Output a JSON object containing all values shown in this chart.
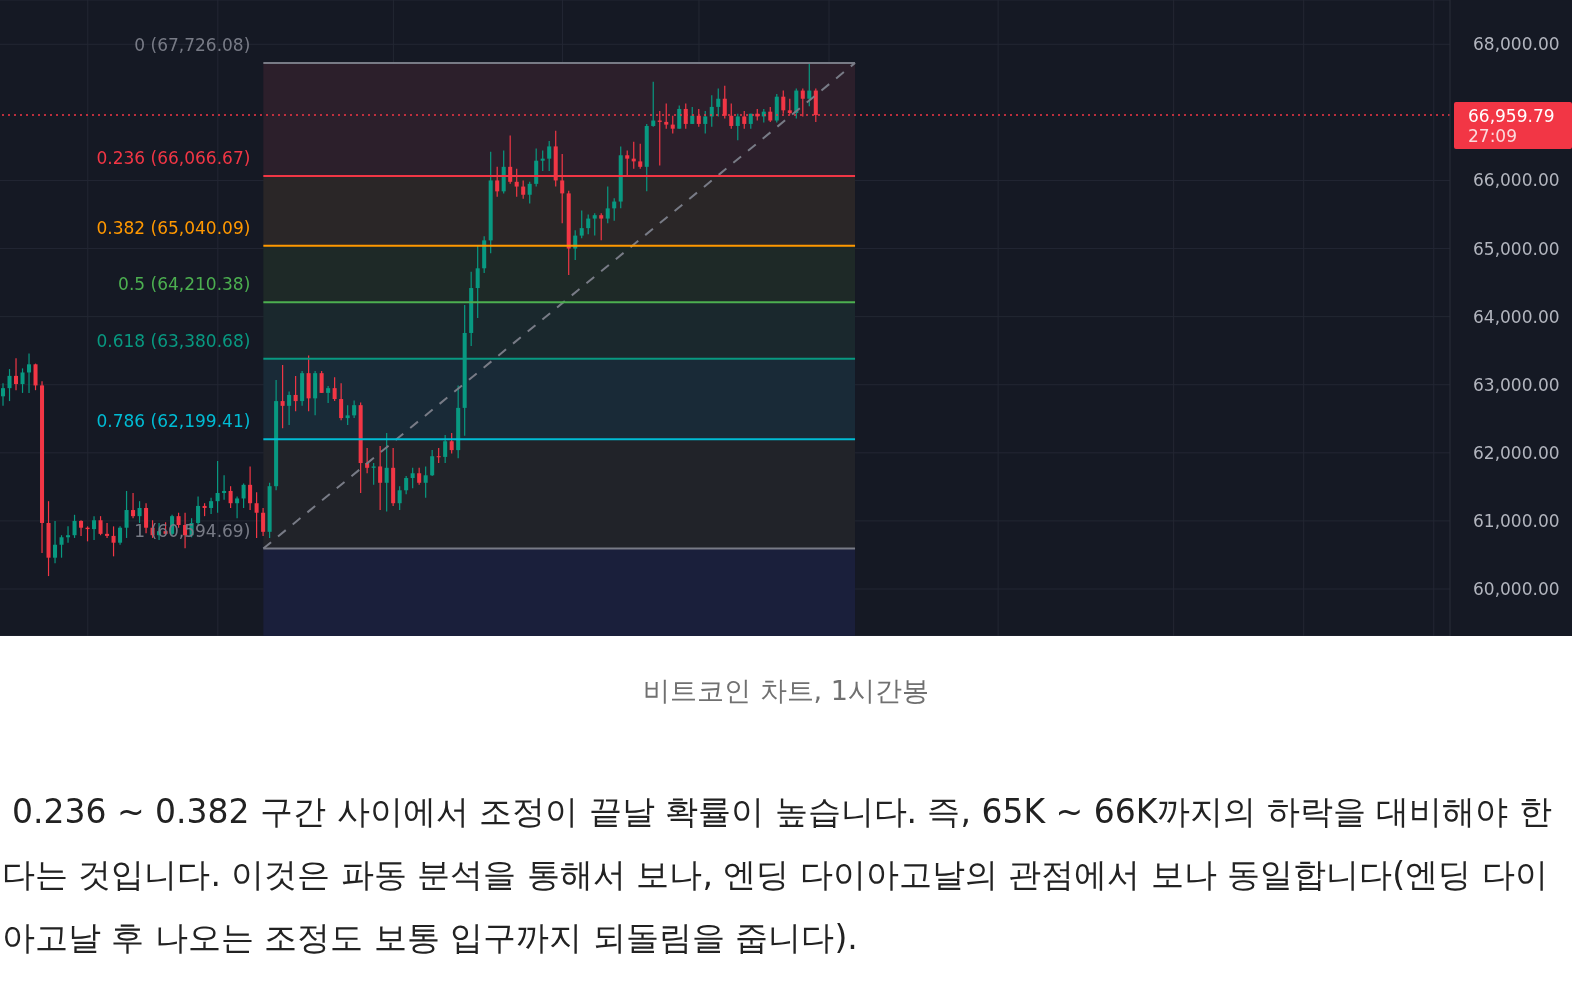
{
  "chart_data": {
    "type": "candlestick",
    "categories": [
      null,
      null,
      null,
      null,
      null,
      null,
      null,
      null,
      null,
      null,
      null,
      null,
      null,
      null,
      null,
      null,
      null,
      null,
      null,
      null,
      null,
      null,
      null,
      null,
      null,
      null,
      null,
      null,
      null,
      null,
      null,
      null,
      null,
      null,
      null,
      null,
      null,
      null,
      null,
      null,
      null,
      null,
      null,
      null,
      null,
      null,
      null,
      null,
      null,
      null,
      null,
      null,
      null,
      null,
      null,
      null,
      null,
      null,
      null,
      null,
      null,
      null,
      null,
      null,
      null,
      null,
      null,
      null,
      null,
      null,
      null,
      null,
      null,
      null,
      null,
      null,
      null,
      null,
      null,
      null,
      null,
      null,
      null,
      null,
      null,
      null,
      null,
      null,
      null,
      null,
      null,
      null,
      null,
      null,
      null,
      null,
      null,
      null,
      null,
      null,
      null,
      null,
      null,
      null,
      null,
      null,
      null,
      null,
      null,
      null,
      null,
      null,
      null,
      null,
      null,
      null,
      null,
      null,
      null,
      null,
      null,
      null,
      null,
      null,
      null,
      null,
      null,
      null,
      null,
      null,
      null,
      null,
      null,
      null,
      null,
      null,
      null,
      null,
      null,
      null,
      null,
      null,
      null,
      null,
      null,
      null,
      null,
      null,
      null,
      null,
      null,
      null,
      null,
      null,
      null,
      null,
      null,
      null,
      null,
      null,
      null,
      null,
      null,
      null,
      null,
      null,
      null,
      null,
      null,
      null,
      null,
      null,
      null,
      null,
      null,
      null,
      null,
      null,
      null,
      null,
      null,
      null,
      null,
      null,
      null,
      null,
      null,
      null,
      null,
      null,
      null,
      null,
      null,
      null,
      null,
      null,
      null,
      null,
      null,
      null,
      null,
      null,
      null,
      null,
      null,
      null,
      null,
      null,
      null,
      null,
      null,
      null,
      null,
      null,
      null,
      null,
      null,
      null,
      null,
      null,
      null,
      null,
      null
    ],
    "ohlc": [
      [
        62830,
        63020,
        62690,
        62950
      ],
      [
        62950,
        63230,
        62760,
        63130
      ],
      [
        63130,
        63390,
        62920,
        63010
      ],
      [
        63010,
        63240,
        62880,
        63180
      ],
      [
        63180,
        63460,
        62880,
        63300
      ],
      [
        63300,
        63310,
        62920,
        62990
      ],
      [
        62990,
        63050,
        60530,
        60970
      ],
      [
        60970,
        61290,
        60190,
        60460
      ],
      [
        60460,
        61000,
        60380,
        60650
      ],
      [
        60650,
        60790,
        60460,
        60760
      ],
      [
        60760,
        60920,
        60680,
        60790
      ],
      [
        60790,
        61090,
        60750,
        61000
      ],
      [
        61000,
        61010,
        60780,
        60900
      ],
      [
        60900,
        60920,
        60700,
        60880
      ],
      [
        60880,
        61070,
        60720,
        61010
      ],
      [
        61010,
        61070,
        60790,
        60810
      ],
      [
        60810,
        60970,
        60750,
        60780
      ],
      [
        60780,
        60920,
        60480,
        60680
      ],
      [
        60680,
        60920,
        60650,
        60900
      ],
      [
        60900,
        61440,
        60750,
        61160
      ],
      [
        61160,
        61410,
        61040,
        61070
      ],
      [
        61070,
        61290,
        60970,
        61190
      ],
      [
        61190,
        61260,
        60820,
        60900
      ],
      [
        60900,
        61010,
        60750,
        60790
      ],
      [
        60790,
        60970,
        60720,
        60850
      ],
      [
        60850,
        60980,
        60790,
        60810
      ],
      [
        60810,
        61090,
        60780,
        61070
      ],
      [
        61070,
        61120,
        60900,
        60940
      ],
      [
        60940,
        61120,
        60600,
        60790
      ],
      [
        60790,
        61040,
        60760,
        60970
      ],
      [
        60970,
        61360,
        60940,
        61220
      ],
      [
        61220,
        61260,
        61070,
        61190
      ],
      [
        61190,
        61340,
        61100,
        61290
      ],
      [
        61290,
        61880,
        61120,
        61410
      ],
      [
        61410,
        61670,
        61310,
        61440
      ],
      [
        61440,
        61510,
        61190,
        61260
      ],
      [
        61260,
        61360,
        61040,
        61330
      ],
      [
        61330,
        61550,
        61190,
        61530
      ],
      [
        61530,
        61800,
        61160,
        61260
      ],
      [
        61260,
        61420,
        60750,
        61120
      ],
      [
        61120,
        61190,
        60780,
        60840
      ],
      [
        60840,
        61560,
        60750,
        61510
      ],
      [
        61510,
        63070,
        61450,
        62760
      ],
      [
        62760,
        63290,
        62360,
        62690
      ],
      [
        62690,
        62900,
        62410,
        62850
      ],
      [
        62850,
        63130,
        62610,
        62760
      ],
      [
        62760,
        63200,
        62690,
        63170
      ],
      [
        63170,
        63430,
        62610,
        62800
      ],
      [
        62800,
        63200,
        62550,
        63170
      ],
      [
        63170,
        63200,
        62880,
        62880
      ],
      [
        62880,
        62980,
        62730,
        62950
      ],
      [
        62950,
        63110,
        62760,
        62790
      ],
      [
        62790,
        63020,
        62480,
        62510
      ],
      [
        62510,
        62700,
        62410,
        62550
      ],
      [
        62550,
        62770,
        62510,
        62700
      ],
      [
        62700,
        62740,
        61410,
        61850
      ],
      [
        61850,
        62070,
        61700,
        61780
      ],
      [
        61780,
        61850,
        61530,
        61800
      ],
      [
        61800,
        62100,
        61160,
        61560
      ],
      [
        61560,
        62290,
        61140,
        61780
      ],
      [
        61780,
        62070,
        61220,
        61260
      ],
      [
        61260,
        61510,
        61160,
        61450
      ],
      [
        61450,
        61660,
        61390,
        61630
      ],
      [
        61630,
        61780,
        61480,
        61700
      ],
      [
        61700,
        61780,
        61530,
        61560
      ],
      [
        61560,
        61800,
        61340,
        61670
      ],
      [
        61670,
        62040,
        61660,
        61950
      ],
      [
        61950,
        62070,
        61850,
        61940
      ],
      [
        61940,
        62260,
        61850,
        62170
      ],
      [
        62170,
        62290,
        61990,
        62040
      ],
      [
        62040,
        62990,
        61920,
        62660
      ],
      [
        62660,
        64170,
        62250,
        63760
      ],
      [
        63760,
        64660,
        63570,
        64420
      ],
      [
        64420,
        65050,
        63980,
        64710
      ],
      [
        64710,
        65180,
        64640,
        65120
      ],
      [
        65120,
        66420,
        64930,
        66000
      ],
      [
        66000,
        66200,
        65760,
        65840
      ],
      [
        65840,
        66440,
        65810,
        66200
      ],
      [
        66200,
        66660,
        65950,
        65980
      ],
      [
        65980,
        66170,
        65760,
        65910
      ],
      [
        65910,
        66000,
        65730,
        65790
      ],
      [
        65790,
        65980,
        65660,
        65950
      ],
      [
        65950,
        66470,
        65910,
        66290
      ],
      [
        66290,
        66440,
        66140,
        66320
      ],
      [
        66320,
        66580,
        66140,
        66500
      ],
      [
        66500,
        66730,
        65910,
        66000
      ],
      [
        66000,
        66390,
        65370,
        65810
      ],
      [
        65810,
        65850,
        64610,
        65000
      ],
      [
        65000,
        65270,
        64830,
        65190
      ],
      [
        65190,
        65560,
        65150,
        65300
      ],
      [
        65300,
        65500,
        65210,
        65440
      ],
      [
        65440,
        65520,
        65190,
        65490
      ],
      [
        65490,
        65520,
        65120,
        65440
      ],
      [
        65440,
        65910,
        65370,
        65590
      ],
      [
        65590,
        65740,
        65410,
        65690
      ],
      [
        65690,
        66500,
        65590,
        66370
      ],
      [
        66370,
        66440,
        66070,
        66320
      ],
      [
        66320,
        66570,
        66170,
        66280
      ],
      [
        66280,
        66540,
        66170,
        66200
      ],
      [
        66200,
        66830,
        65840,
        66800
      ],
      [
        66800,
        67450,
        66790,
        66880
      ],
      [
        66880,
        67020,
        66220,
        66860
      ],
      [
        66860,
        67130,
        66760,
        66820
      ],
      [
        66820,
        66950,
        66690,
        66760
      ],
      [
        66760,
        67100,
        66760,
        67050
      ],
      [
        67050,
        67130,
        66760,
        66830
      ],
      [
        66830,
        67080,
        66830,
        66950
      ],
      [
        66950,
        67050,
        66790,
        66830
      ],
      [
        66830,
        67020,
        66690,
        66940
      ],
      [
        66940,
        67250,
        66790,
        67080
      ],
      [
        67080,
        67350,
        66940,
        67200
      ],
      [
        67200,
        67390,
        66910,
        66950
      ],
      [
        66950,
        67130,
        66760,
        66800
      ],
      [
        66800,
        66980,
        66590,
        66940
      ],
      [
        66940,
        67020,
        66760,
        66830
      ],
      [
        66830,
        66980,
        66760,
        66980
      ],
      [
        66980,
        67050,
        66880,
        66940
      ],
      [
        66940,
        67050,
        66850,
        67010
      ],
      [
        67010,
        67080,
        66860,
        66880
      ],
      [
        66880,
        67270,
        66850,
        67230
      ],
      [
        67230,
        67320,
        66980,
        67030
      ],
      [
        67030,
        67200,
        66970,
        66990
      ],
      [
        66990,
        67350,
        66910,
        67320
      ],
      [
        67320,
        67350,
        66940,
        67200
      ],
      [
        67200,
        67720,
        67090,
        67320
      ],
      [
        67320,
        67350,
        66860,
        66960
      ],
      null,
      null,
      null,
      null,
      null,
      null,
      null,
      null,
      null,
      null,
      null,
      null,
      null,
      null,
      null,
      null,
      null,
      null,
      null,
      null,
      null,
      null,
      null,
      null,
      null,
      null,
      null,
      null,
      null,
      null,
      null,
      null,
      null,
      null,
      null,
      null,
      null,
      null,
      null,
      null,
      null,
      null,
      null,
      null,
      null,
      null,
      null,
      null,
      null,
      null,
      null,
      null,
      null,
      null,
      null,
      null,
      null,
      null,
      null,
      null,
      null,
      null,
      null,
      null,
      null,
      null,
      null,
      null,
      null,
      null,
      null,
      null,
      null,
      null,
      null,
      null,
      null,
      null,
      null,
      null,
      null,
      null,
      null,
      null,
      null,
      null,
      null,
      null,
      null,
      null,
      null,
      null,
      null,
      null,
      null,
      null,
      null
    ],
    "colors": [
      "#089981",
      "#089981",
      "#f23645",
      "#089981",
      "#089981",
      "#f23645",
      "#f23645",
      "#f23645",
      "#089981",
      "#089981",
      "#089981",
      "#089981",
      "#f23645",
      "#f23645",
      "#089981",
      "#f23645",
      "#f23645",
      "#f23645",
      "#089981",
      "#089981",
      "#f23645",
      "#089981",
      "#f23645",
      "#f23645",
      "#089981",
      "#f23645",
      "#089981",
      "#f23645",
      "#f23645",
      "#089981",
      "#089981",
      "#f23645",
      "#089981",
      "#089981",
      "#089981",
      "#f23645",
      "#089981",
      "#089981",
      "#f23645",
      "#f23645",
      "#f23645",
      "#089981",
      "#089981",
      "#f23645",
      "#089981",
      "#f23645",
      "#089981",
      "#f23645",
      "#089981",
      "#f23645",
      "#089981",
      "#f23645",
      "#f23645",
      "#089981",
      "#089981",
      "#f23645",
      "#f23645",
      "#089981",
      "#f23645",
      "#089981",
      "#f23645",
      "#089981",
      "#089981",
      "#089981",
      "#f23645",
      "#089981",
      "#089981",
      "#f23645",
      "#089981",
      "#f23645",
      "#089981",
      "#089981",
      "#089981",
      "#089981",
      "#089981",
      "#089981",
      "#f23645",
      "#089981",
      "#f23645",
      "#f23645",
      "#f23645",
      "#089981",
      "#089981",
      "#089981",
      "#089981",
      "#f23645",
      "#f23645",
      "#f23645",
      "#089981",
      "#089981",
      "#089981",
      "#089981",
      "#f23645",
      "#089981",
      "#089981",
      "#089981",
      "#f23645",
      "#f23645",
      "#f23645",
      "#089981",
      "#089981",
      "#f23645",
      "#f23645",
      "#f23645",
      "#089981",
      "#f23645",
      "#089981",
      "#f23645",
      "#089981",
      "#089981",
      "#089981",
      "#f23645",
      "#f23645",
      "#089981",
      "#f23645",
      "#089981",
      "#f23645",
      "#089981",
      "#f23645",
      "#089981",
      "#f23645",
      "#f23645",
      "#089981",
      "#f23645",
      "#089981",
      "#f23645",
      null,
      null,
      null,
      null,
      null,
      null,
      null,
      null,
      null,
      null,
      null,
      null,
      null,
      null,
      null,
      null,
      null,
      null,
      null,
      null,
      null,
      null,
      null,
      null,
      null,
      null,
      null,
      null,
      null,
      null,
      null,
      null,
      null,
      null,
      null,
      null,
      null,
      null,
      null,
      null,
      null,
      null,
      null,
      null,
      null,
      null,
      null,
      null,
      null,
      null,
      null,
      null,
      null,
      null,
      null,
      null,
      null,
      null,
      null,
      null,
      null,
      null,
      null,
      null,
      null,
      null,
      null,
      null,
      null,
      null,
      null,
      null,
      null,
      null,
      null,
      null,
      null,
      null,
      null,
      null,
      null,
      null,
      null,
      null,
      null,
      null,
      null,
      null,
      null,
      null,
      null,
      null,
      null,
      null,
      null,
      null,
      null
    ],
    "series": [
      {
        "type": "line",
        "color": "#787b86",
        "line_style": "dashed",
        "values": [
          null,
          null,
          null,
          null,
          null,
          null,
          null,
          null,
          null,
          null,
          null,
          null,
          null,
          null,
          null,
          null,
          null,
          null,
          null,
          null,
          null,
          null,
          null,
          null,
          null,
          null,
          null,
          null,
          null,
          null,
          null,
          null,
          null,
          null,
          null,
          null,
          null,
          null,
          null,
          null,
          60594.69,
          null,
          null,
          null,
          null,
          null,
          null,
          null,
          null,
          null,
          null,
          null,
          null,
          null,
          null,
          null,
          null,
          null,
          null,
          null,
          null,
          null,
          null,
          null,
          null,
          null,
          null,
          null,
          null,
          null,
          null,
          null,
          null,
          null,
          null,
          null,
          null,
          null,
          null,
          null,
          null,
          null,
          null,
          null,
          null,
          null,
          null,
          null,
          null,
          null,
          null,
          null,
          null,
          null,
          null,
          null,
          null,
          null,
          null,
          null,
          null,
          null,
          null,
          null,
          null,
          null,
          null,
          null,
          null,
          null,
          null,
          null,
          null,
          null,
          null,
          null,
          null,
          null,
          null,
          null,
          null,
          null,
          null,
          null,
          null,
          null,
          null,
          null,
          null,
          null,
          null,
          67726.08,
          null,
          null,
          null,
          null,
          null,
          null,
          null,
          null,
          null,
          null,
          null,
          null,
          null,
          null,
          null,
          null,
          null,
          null,
          null,
          null,
          null,
          null,
          null,
          null,
          null,
          null,
          null,
          null,
          null,
          null,
          null,
          null,
          null,
          null,
          null,
          null,
          null,
          null,
          null,
          null,
          null,
          null,
          null,
          null,
          null,
          null,
          null,
          null,
          null,
          null,
          null,
          null,
          null,
          null,
          null,
          null,
          null,
          null,
          null,
          null,
          null,
          null,
          null,
          null,
          null,
          null,
          null,
          null,
          null,
          null,
          null,
          null,
          null,
          null,
          null,
          null,
          null,
          null,
          null,
          null,
          null,
          null,
          null,
          null,
          null,
          null,
          null,
          null,
          null,
          null,
          null
        ]
      }
    ],
    "ylim": [
      59310,
      68650
    ],
    "yticks": [
      {
        "value": 60000,
        "label": "60,000.00"
      },
      {
        "value": 61000,
        "label": "61,000.00"
      },
      {
        "value": 62000,
        "label": "62,000.00"
      },
      {
        "value": 63000,
        "label": "63,000.00"
      },
      {
        "value": 64000,
        "label": "64,000.00"
      },
      {
        "value": 65000,
        "label": "65,000.00"
      },
      {
        "value": 66000,
        "label": "66,000.00"
      },
      {
        "value": 68000,
        "label": "68,000.00"
      }
    ],
    "tick_labels": "y",
    "grid": true,
    "bands": [
      {
        "axis": "y",
        "from": 66066.67,
        "to": 67726.08,
        "color": "#2c1f2b"
      },
      {
        "axis": "y",
        "from": 65040.09,
        "to": 66066.67,
        "color": "#2a2627"
      },
      {
        "axis": "y",
        "from": 64210.38,
        "to": 65040.09,
        "color": "#1e2927"
      },
      {
        "axis": "y",
        "from": 63380.68,
        "to": 64210.38,
        "color": "#1a282d"
      },
      {
        "axis": "y",
        "from": 62199.41,
        "to": 63380.68,
        "color": "#192a37"
      },
      {
        "axis": "y",
        "from": 60594.69,
        "to": 62199.41,
        "color": "#212329"
      },
      {
        "axis": "y",
        "from": 59310,
        "to": 60594.69,
        "color": "#1a1f3b"
      }
    ],
    "ref_lines": [
      {
        "axis": "y",
        "value": 67726.08,
        "label": "0 (67,726.08)",
        "color": "#787b86",
        "line_style": "solid"
      },
      {
        "axis": "y",
        "value": 66066.67,
        "label": "0.236 (66,066.67)",
        "color": "#f23645",
        "line_style": "solid"
      },
      {
        "axis": "y",
        "value": 65040.09,
        "label": "0.382 (65,040.09)",
        "color": "#ff9800",
        "line_style": "solid"
      },
      {
        "axis": "y",
        "value": 64210.38,
        "label": "0.5 (64,210.38)",
        "color": "#4caf50",
        "line_style": "solid"
      },
      {
        "axis": "y",
        "value": 63380.68,
        "label": "0.618 (63,380.68)",
        "color": "#089981",
        "line_style": "solid"
      },
      {
        "axis": "y",
        "value": 62199.41,
        "label": "0.786 (62,199.41)",
        "color": "#00bcd4",
        "line_style": "solid"
      },
      {
        "axis": "y",
        "value": 60594.69,
        "label": "1 (60,594.69)",
        "color": "#787b86",
        "line_style": "solid"
      },
      {
        "axis": "y",
        "value": 66959.79,
        "label": "66,959.79",
        "color": "#f23645",
        "line_style": "dotted"
      }
    ],
    "annotations": [
      "27:09",
      "비트코인 차트, 1시간봉",
      "0.236 ~ 0.382 구간 사이에서 조정이 끝날 확률이 높습니다. 즉, 65K ~ 66K까지의 하락을 대비해야 한다는 것입니다. 이것은 파동 분석을 통해서 보나, 엔딩 다이아고날의 관점에서 보나 동일합니다(엔딩 다이아고날 후 나오는 조정도 보통 입구까지 되돌림을 줍니다)."
    ]
  }
}
